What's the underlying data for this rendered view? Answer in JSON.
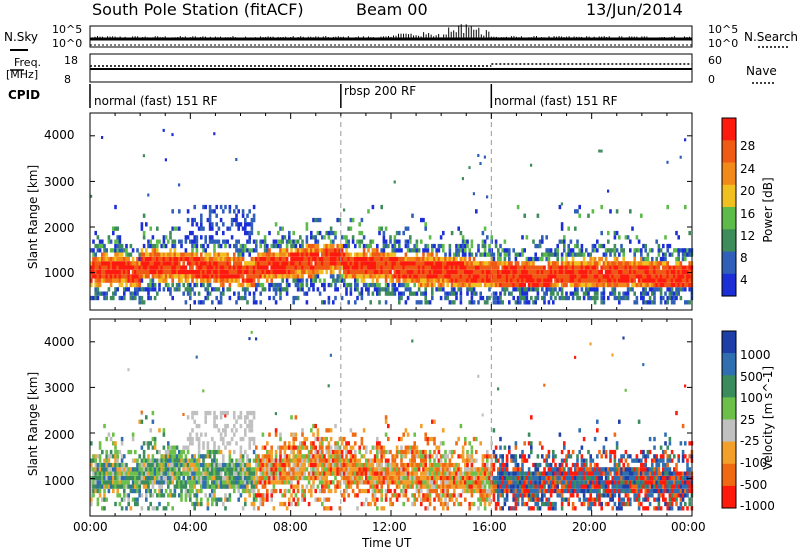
{
  "header": {
    "station": "South Pole Station (fitACF)",
    "beam": "Beam 00",
    "date": "13/Jun/2014"
  },
  "top_panels": {
    "nsky_label": "N.Sky",
    "nsearch_label": "N.Search",
    "noise_left_ticks": [
      "10^5",
      "10^0"
    ],
    "noise_right_ticks": [
      "10^5",
      "10^0"
    ],
    "freq_label_1": "Freq.",
    "freq_label_2": "[MHz]",
    "freq_ticks": [
      "18",
      "8"
    ],
    "nave_label": "Nave",
    "nave_ticks": [
      "60",
      "0"
    ],
    "cpid_label": "CPID",
    "cpid_segments": [
      "normal (fast) 151 RF",
      "rbsp 200 RF",
      "normal (fast) 151 RF"
    ]
  },
  "axes": {
    "ylabel": "Slant Range [km]",
    "xlabel": "Time UT",
    "y_ticks": [
      "1000",
      "2000",
      "3000",
      "4000"
    ],
    "x_ticks": [
      "00:00",
      "04:00",
      "08:00",
      "12:00",
      "16:00",
      "20:00",
      "00:00"
    ]
  },
  "power_scale": {
    "label": "Power [dB]",
    "ticks": [
      "4",
      "8",
      "12",
      "16",
      "20",
      "24",
      "28"
    ],
    "colors": [
      "#1c2fd6",
      "#2f5fb8",
      "#3d8c5a",
      "#5dbb4a",
      "#f0c020",
      "#f28a1a",
      "#ef5a14",
      "#ff1a10"
    ]
  },
  "velocity_scale": {
    "label": "Velocity [m s^-1]",
    "ticks": [
      "1000",
      "500",
      "100",
      "25",
      "-25",
      "-100",
      "-500",
      "-1000"
    ],
    "colors": [
      "#1f3fa8",
      "#2f6fb0",
      "#3a8c5c",
      "#6cc04a",
      "#c0c0c0",
      "#f3a02a",
      "#f06a14",
      "#ff1a0c"
    ]
  },
  "chart_data": [
    {
      "type": "heatmap",
      "title": "Power",
      "xlabel": "Time UT",
      "ylabel": "Slant Range [km]",
      "xlim": [
        "00:00",
        "24:00"
      ],
      "ylim": [
        180,
        4500
      ],
      "colorbar": {
        "label": "Power [dB]",
        "ticks": [
          4,
          8,
          12,
          16,
          20,
          24,
          28
        ]
      },
      "mode_changes_ut": [
        "10:00",
        "16:00"
      ],
      "grid": false
    },
    {
      "type": "heatmap",
      "title": "Velocity",
      "xlabel": "Time UT",
      "ylabel": "Slant Range [km]",
      "xlim": [
        "00:00",
        "24:00"
      ],
      "ylim": [
        180,
        4500
      ],
      "colorbar": {
        "label": "Velocity [m s^-1]",
        "ticks": [
          1000,
          500,
          100,
          25,
          -25,
          -100,
          -500,
          -1000
        ]
      },
      "mode_changes_ut": [
        "10:00",
        "16:00"
      ],
      "grid": false
    }
  ]
}
